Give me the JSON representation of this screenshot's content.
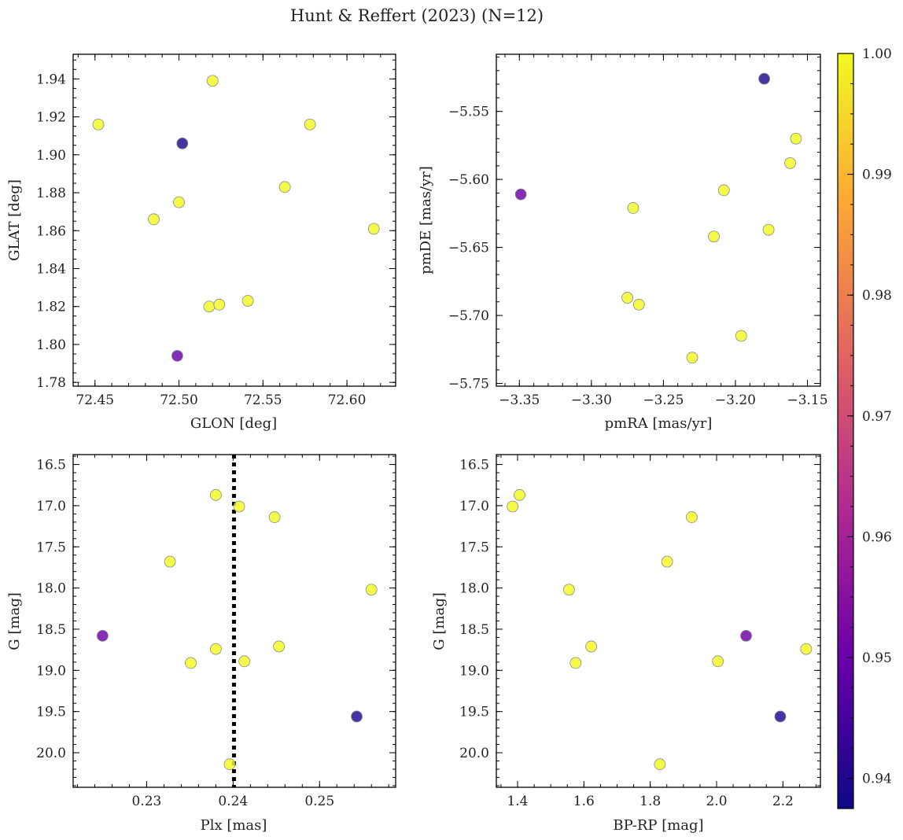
{
  "figure_title": "Hunt & Reffert (2023) (N=12)",
  "colors": {
    "axis": "#000000",
    "marker_edge": "#8a8a8a",
    "cmap": [
      "#0d0887",
      "#6a00a8",
      "#b12a90",
      "#e16462",
      "#fca636",
      "#f0f921"
    ]
  },
  "colorbar": {
    "min": 0.9375,
    "max": 1.0,
    "ticks": [
      0.94,
      0.95,
      0.96,
      0.97,
      0.98,
      0.99,
      1.0
    ],
    "tick_labels": [
      "0.94",
      "0.95",
      "0.96",
      "0.97",
      "0.98",
      "0.99",
      "1.00"
    ]
  },
  "chart_data": [
    {
      "type": "scatter",
      "id": "glon-glat",
      "xlabel": "GLON [deg]",
      "ylabel": "GLAT [deg]",
      "xlim": [
        72.437,
        72.629
      ],
      "ylim": [
        1.778,
        1.953
      ],
      "y_inverted": false,
      "xticks": [
        72.45,
        72.5,
        72.55,
        72.6
      ],
      "xtick_labels": [
        "72.45",
        "72.50",
        "72.55",
        "72.60"
      ],
      "xminor": 0.01,
      "yticks": [
        1.78,
        1.8,
        1.82,
        1.84,
        1.86,
        1.88,
        1.9,
        1.92,
        1.94
      ],
      "ytick_labels": [
        "1.78",
        "1.80",
        "1.82",
        "1.84",
        "1.86",
        "1.88",
        "1.90",
        "1.92",
        "1.94"
      ],
      "yminor": 0.005,
      "x": [
        72.452,
        72.52,
        72.502,
        72.578,
        72.563,
        72.5,
        72.485,
        72.616,
        72.518,
        72.524,
        72.541,
        72.499
      ],
      "y": [
        1.916,
        1.939,
        1.906,
        1.916,
        1.883,
        1.875,
        1.866,
        1.861,
        1.82,
        1.821,
        1.823,
        1.794
      ],
      "c": [
        1.0,
        1.0,
        0.94,
        1.0,
        1.0,
        1.0,
        1.0,
        1.0,
        1.0,
        1.0,
        1.0,
        0.95
      ]
    },
    {
      "type": "scatter",
      "id": "pmra-pmde",
      "xlabel": "pmRA [mas/yr]",
      "ylabel": "pmDE [mas/yr]",
      "xlim": [
        -3.366,
        -3.141
      ],
      "ylim": [
        -5.752,
        -5.508
      ],
      "y_inverted": false,
      "xticks": [
        -3.35,
        -3.3,
        -3.25,
        -3.2,
        -3.15
      ],
      "xtick_labels": [
        "−3.35",
        "−3.30",
        "−3.25",
        "−3.20",
        "−3.15"
      ],
      "xminor": 0.01,
      "yticks": [
        -5.75,
        -5.7,
        -5.65,
        -5.6,
        -5.55
      ],
      "ytick_labels": [
        "−5.75",
        "−5.70",
        "−5.65",
        "−5.60",
        "−5.55"
      ],
      "yminor": 0.01,
      "x": [
        -3.18,
        -3.158,
        -3.162,
        -3.349,
        -3.208,
        -3.271,
        -3.215,
        -3.177,
        -3.275,
        -3.267,
        -3.196,
        -3.23
      ],
      "y": [
        -5.526,
        -5.57,
        -5.588,
        -5.611,
        -5.608,
        -5.621,
        -5.642,
        -5.637,
        -5.687,
        -5.692,
        -5.715,
        -5.731
      ],
      "c": [
        0.94,
        1.0,
        1.0,
        0.95,
        1.0,
        1.0,
        1.0,
        1.0,
        1.0,
        1.0,
        1.0,
        1.0
      ]
    },
    {
      "type": "scatter",
      "id": "plx-g",
      "xlabel": "Plx [mas]",
      "ylabel": "G [mag]",
      "xlim": [
        0.2215,
        0.2588
      ],
      "ylim": [
        16.38,
        20.42
      ],
      "y_inverted": true,
      "xticks": [
        0.23,
        0.24,
        0.25
      ],
      "xtick_labels": [
        "0.23",
        "0.24",
        "0.25"
      ],
      "xminor": 0.002,
      "yticks": [
        16.5,
        17.0,
        17.5,
        18.0,
        18.5,
        19.0,
        19.5,
        20.0
      ],
      "ytick_labels": [
        "16.5",
        "17.0",
        "17.5",
        "18.0",
        "18.5",
        "19.0",
        "19.5",
        "20.0"
      ],
      "yminor": 0.1,
      "vline": 0.2401,
      "x": [
        0.238,
        0.2407,
        0.2448,
        0.2327,
        0.256,
        0.2249,
        0.238,
        0.2413,
        0.2453,
        0.2351,
        0.2543,
        0.2396
      ],
      "y": [
        16.87,
        17.01,
        17.14,
        17.68,
        18.02,
        18.58,
        18.74,
        18.89,
        18.71,
        18.91,
        19.56,
        20.14
      ],
      "c": [
        1.0,
        1.0,
        1.0,
        1.0,
        1.0,
        0.95,
        1.0,
        1.0,
        1.0,
        1.0,
        0.94,
        1.0
      ]
    },
    {
      "type": "scatter",
      "id": "bprp-g",
      "xlabel": "BP-RP [mag]",
      "ylabel": "G [mag]",
      "xlim": [
        1.336,
        2.313
      ],
      "ylim": [
        16.38,
        20.42
      ],
      "y_inverted": true,
      "xticks": [
        1.4,
        1.6,
        1.8,
        2.0,
        2.2
      ],
      "xtick_labels": [
        "1.4",
        "1.6",
        "1.8",
        "2.0",
        "2.2"
      ],
      "xminor": 0.05,
      "yticks": [
        16.5,
        17.0,
        17.5,
        18.0,
        18.5,
        19.0,
        19.5,
        20.0
      ],
      "ytick_labels": [
        "16.5",
        "17.0",
        "17.5",
        "18.0",
        "18.5",
        "19.0",
        "19.5",
        "20.0"
      ],
      "yminor": 0.1,
      "x": [
        1.406,
        1.385,
        1.925,
        1.851,
        1.555,
        2.089,
        2.27,
        2.004,
        1.622,
        1.575,
        2.192,
        1.829
      ],
      "y": [
        16.87,
        17.01,
        17.14,
        17.68,
        18.02,
        18.58,
        18.74,
        18.89,
        18.71,
        18.91,
        19.56,
        20.14
      ],
      "c": [
        1.0,
        1.0,
        1.0,
        1.0,
        1.0,
        0.95,
        1.0,
        1.0,
        1.0,
        1.0,
        0.94,
        1.0
      ]
    }
  ]
}
